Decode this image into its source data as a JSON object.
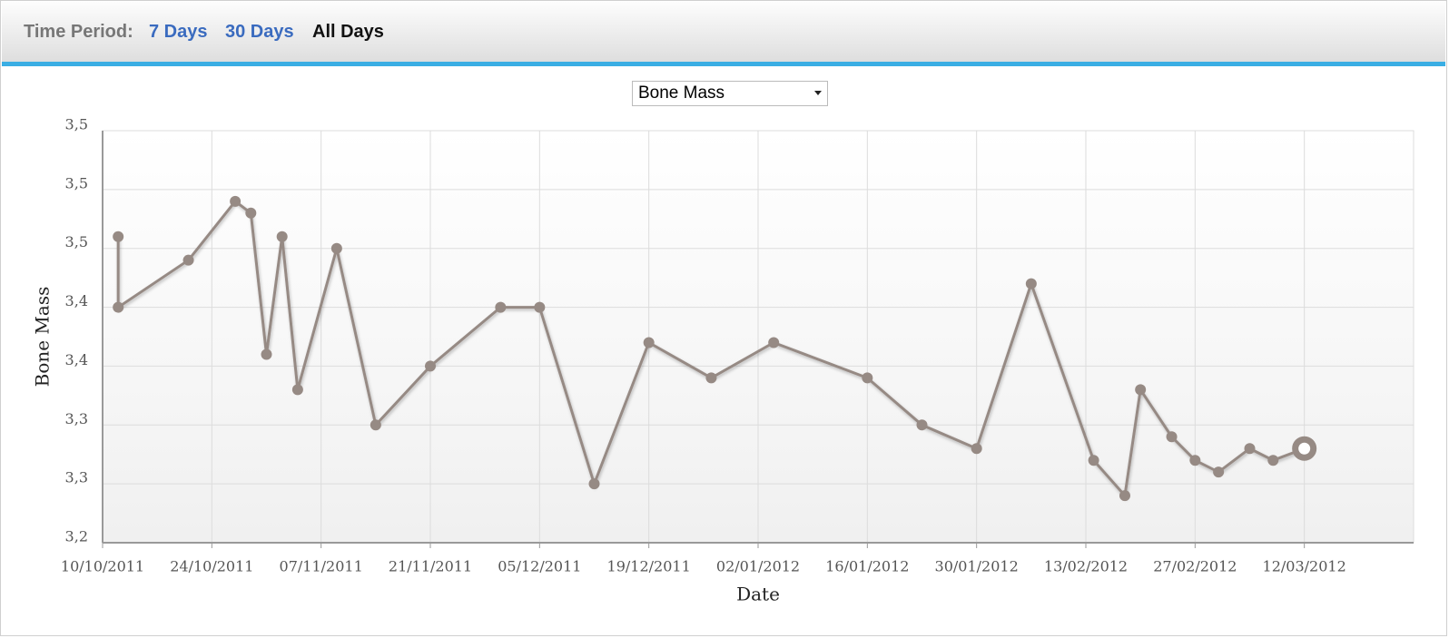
{
  "header": {
    "label": "Time Period:",
    "options": [
      "7 Days",
      "30 Days",
      "All Days"
    ],
    "active": 2
  },
  "selector": {
    "selected": "Bone Mass"
  },
  "chart_data": {
    "type": "line",
    "y_label": "Bone Mass",
    "x_label": "Date",
    "x": [
      "12/10/2011",
      "12/10/2011",
      "21/10/2011",
      "27/10/2011",
      "29/10/2011",
      "31/10/2011",
      "02/11/2011",
      "04/11/2011",
      "09/11/2011",
      "14/11/2011",
      "21/11/2011",
      "30/11/2011",
      "05/12/2011",
      "12/12/2011",
      "19/12/2011",
      "27/12/2011",
      "04/01/2012",
      "16/01/2012",
      "23/01/2012",
      "30/01/2012",
      "06/02/2012",
      "14/02/2012",
      "18/02/2012",
      "20/02/2012",
      "24/02/2012",
      "27/02/2012",
      "01/03/2012",
      "05/03/2012",
      "08/03/2012",
      "12/03/2012"
    ],
    "values": [
      3.46,
      3.4,
      3.44,
      3.49,
      3.48,
      3.36,
      3.46,
      3.33,
      3.45,
      3.3,
      3.35,
      3.4,
      3.4,
      3.25,
      3.37,
      3.34,
      3.37,
      3.34,
      3.3,
      3.28,
      3.42,
      3.27,
      3.24,
      3.33,
      3.29,
      3.27,
      3.26,
      3.28,
      3.27,
      3.28
    ],
    "color": "#968a84",
    "xlim": [
      "10/10/2011",
      "26/03/2012"
    ],
    "xticks": [
      "10/10/2011",
      "24/10/2011",
      "07/11/2011",
      "21/11/2011",
      "05/12/2011",
      "19/12/2011",
      "02/01/2012",
      "16/01/2012",
      "30/01/2012",
      "13/02/2012",
      "27/02/2012",
      "12/03/2012"
    ],
    "ylim": [
      3.2,
      3.55
    ],
    "yticks": [
      {
        "value": 3.2,
        "label": "3,2"
      },
      {
        "value": 3.25,
        "label": "3,3"
      },
      {
        "value": 3.3,
        "label": "3,3"
      },
      {
        "value": 3.35,
        "label": "3,4"
      },
      {
        "value": 3.4,
        "label": "3,4"
      },
      {
        "value": 3.45,
        "label": "3,5"
      },
      {
        "value": 3.5,
        "label": "3,5"
      },
      {
        "value": 3.55,
        "label": "3,5"
      }
    ],
    "grid": true
  }
}
